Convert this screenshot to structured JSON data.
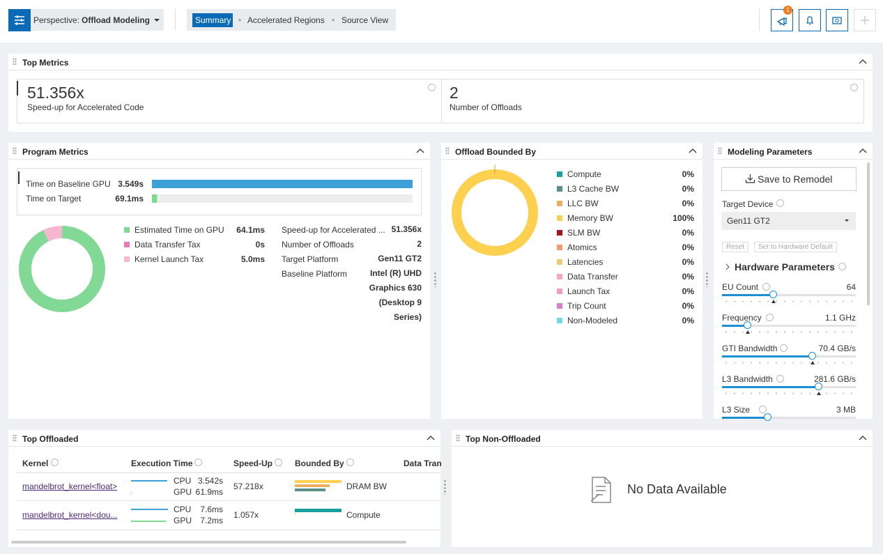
{
  "toolbar": {
    "perspective_label": "Perspective:",
    "perspective": "Offload Modeling",
    "tabs": [
      "Summary",
      "Accelerated Regions",
      "Source View"
    ],
    "notification_count": "1"
  },
  "top_metrics": {
    "title": "Top Metrics",
    "metrics": [
      {
        "value": "51.356x",
        "label": "Speed-up for Accelerated Code"
      },
      {
        "value": "2",
        "label": "Number of Offloads"
      }
    ]
  },
  "program_metrics": {
    "title": "Program Metrics",
    "time_bars": [
      {
        "label": "Time on Baseline GPU",
        "value": 3.549,
        "value_label": "3.549s",
        "color": "#3ea0d9"
      },
      {
        "label": "Time on Target",
        "value": 0.0691,
        "value_label": "69.1ms",
        "color": "#7fd98f"
      }
    ],
    "breakdown": [
      {
        "name": "Estimated Time on GPU",
        "value": 64.1,
        "value_label": "64.1ms",
        "color": "#82d995"
      },
      {
        "name": "Data Transfer Tax",
        "value": 0,
        "value_label": "0s",
        "color": "#e87bb6"
      },
      {
        "name": "Kernel Launch Tax",
        "value": 5.0,
        "value_label": "5.0ms",
        "color": "#f8b7d0"
      }
    ],
    "info": [
      {
        "label": "Speed-up for Accelerated ...",
        "value": "51.356x"
      },
      {
        "label": "Number of Offloads",
        "value": "2"
      },
      {
        "label": "Target Platform",
        "value": "Gen11 GT2"
      },
      {
        "label": "Baseline Platform",
        "value": "Intel (R) UHD Graphics 630 (Desktop 9 Series)"
      }
    ]
  },
  "offload_bounded_by": {
    "title": "Offload Bounded By",
    "items": [
      {
        "name": "Compute",
        "value": 0,
        "value_label": "0%",
        "color": "#1a9fa0"
      },
      {
        "name": "L3 Cache BW",
        "value": 0,
        "value_label": "0%",
        "color": "#5b8f8c"
      },
      {
        "name": "LLC BW",
        "value": 0,
        "value_label": "0%",
        "color": "#e8b060"
      },
      {
        "name": "Memory BW",
        "value": 100,
        "value_label": "100%",
        "color": "#fdd04f"
      },
      {
        "name": "SLM BW",
        "value": 0,
        "value_label": "0%",
        "color": "#a8111e"
      },
      {
        "name": "Atomics",
        "value": 0,
        "value_label": "0%",
        "color": "#f79a6d"
      },
      {
        "name": "Latencies",
        "value": 0,
        "value_label": "0%",
        "color": "#f3c96e"
      },
      {
        "name": "Data Transfer",
        "value": 0,
        "value_label": "0%",
        "color": "#f2a8c6"
      },
      {
        "name": "Launch Tax",
        "value": 0,
        "value_label": "0%",
        "color": "#f49ac1"
      },
      {
        "name": "Trip Count",
        "value": 0,
        "value_label": "0%",
        "color": "#d67ed6"
      },
      {
        "name": "Non-Modeled",
        "value": 0,
        "value_label": "0%",
        "color": "#6fdbe0"
      }
    ]
  },
  "modeling_parameters": {
    "title": "Modeling Parameters",
    "save_button": "Save to Remodel",
    "target_device_label": "Target Device",
    "target_device": "Gen11 GT2",
    "reset_button": "Reset",
    "default_button": "Set to Hardware Default",
    "hardware_title": "Hardware Parameters",
    "parameters": [
      {
        "name": "EU Count",
        "value": "64"
      },
      {
        "name": "Frequency",
        "value": "1.1 GHz"
      },
      {
        "name": "GTI Bandwidth",
        "value": "70.4 GB/s"
      },
      {
        "name": "L3 Bandwidth",
        "value": "281.6 GB/s"
      },
      {
        "name": "L3 Size",
        "value": "3 MB"
      }
    ]
  },
  "top_offloaded": {
    "title": "Top Offloaded",
    "columns": [
      "Kernel",
      "Execution Time",
      "Speed-Up",
      "Bounded By",
      "Data Tran"
    ],
    "rows": [
      {
        "kernel": "mandelbrot_kernel<float>",
        "cpu_label": "CPU",
        "cpu_time": "3.542s",
        "gpu_label": "GPU",
        "gpu_time": "61.9ms",
        "speed_up": "57.218x",
        "bounded_by": "DRAM BW"
      },
      {
        "kernel": "mandelbrot_kernel<dou...",
        "cpu_label": "CPU",
        "cpu_time": "7.6ms",
        "gpu_label": "GPU",
        "gpu_time": "7.2ms",
        "speed_up": "1.057x",
        "bounded_by": "Compute"
      }
    ]
  },
  "top_non_offloaded": {
    "title": "Top Non-Offloaded",
    "message": "No Data Available"
  }
}
